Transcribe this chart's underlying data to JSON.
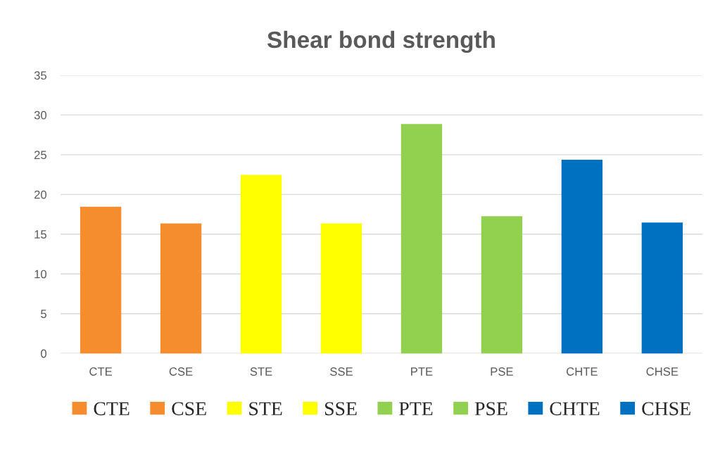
{
  "chart_data": {
    "type": "bar",
    "title": "Shear bond strength",
    "categories": [
      "CTE",
      "CSE",
      "STE",
      "SSE",
      "PTE",
      "PSE",
      "CHTE",
      "CHSE"
    ],
    "series": [
      {
        "name": "CTE",
        "color": "#f58d2e",
        "values": [
          18.4,
          null,
          null,
          null,
          null,
          null,
          null,
          null
        ]
      },
      {
        "name": "CSE",
        "color": "#f58d2e",
        "values": [
          null,
          16.3,
          null,
          null,
          null,
          null,
          null,
          null
        ]
      },
      {
        "name": "STE",
        "color": "#ffff00",
        "values": [
          null,
          null,
          22.4,
          null,
          null,
          null,
          null,
          null
        ]
      },
      {
        "name": "SSE",
        "color": "#ffff00",
        "values": [
          null,
          null,
          null,
          16.3,
          null,
          null,
          null,
          null
        ]
      },
      {
        "name": "PTE",
        "color": "#92d050",
        "values": [
          null,
          null,
          null,
          null,
          28.8,
          null,
          null,
          null
        ]
      },
      {
        "name": "PSE",
        "color": "#92d050",
        "values": [
          null,
          null,
          null,
          null,
          null,
          17.2,
          null,
          null
        ]
      },
      {
        "name": "CHTE",
        "color": "#0070c0",
        "values": [
          null,
          null,
          null,
          null,
          null,
          null,
          24.3,
          null
        ]
      },
      {
        "name": "CHSE",
        "color": "#0070c0",
        "values": [
          null,
          null,
          null,
          null,
          null,
          null,
          null,
          16.4
        ]
      }
    ],
    "ylim": [
      0,
      35
    ],
    "yticks": [
      0,
      5,
      10,
      15,
      20,
      25,
      30,
      35
    ],
    "grid": "y",
    "legend": "bottom"
  }
}
